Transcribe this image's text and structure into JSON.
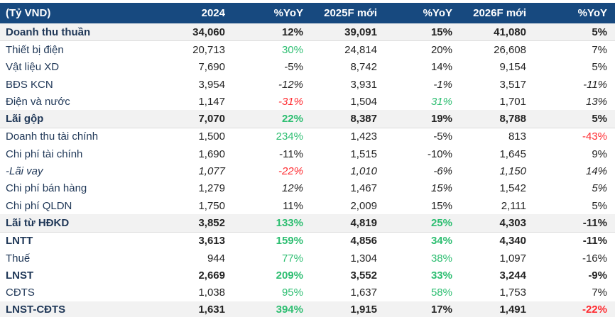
{
  "colors": {
    "header-bg": "#17497F",
    "header-text": "#FFFFFF",
    "band-bg": "#F2F2F2",
    "label-color": "#1F3757",
    "num-color": "#242424",
    "positive-green": "#2DBE71",
    "negative-red": "#FF2B30"
  },
  "chart_data": {
    "type": "table",
    "unit_label": "(Tỷ VND)",
    "columns": [
      "2024",
      "%YoY",
      "2025F mới",
      "%YoY",
      "2026F mới",
      "%YoY"
    ],
    "rows": [
      {
        "label": "Doanh thu thuần",
        "band": true,
        "bold": true,
        "cells": [
          {
            "text": "34,060"
          },
          {
            "text": "12%"
          },
          {
            "text": "39,091"
          },
          {
            "text": "15%"
          },
          {
            "text": "41,080"
          },
          {
            "text": "5%"
          }
        ]
      },
      {
        "label": "Thiết bị điện",
        "cells": [
          {
            "text": "20,713"
          },
          {
            "text": "30%",
            "color": "green"
          },
          {
            "text": "24,814"
          },
          {
            "text": "20%"
          },
          {
            "text": "26,608"
          },
          {
            "text": "7%"
          }
        ]
      },
      {
        "label": "Vật liệu XD",
        "cells": [
          {
            "text": "7,690"
          },
          {
            "text": "-5%"
          },
          {
            "text": "8,742"
          },
          {
            "text": "14%"
          },
          {
            "text": "9,154"
          },
          {
            "text": "5%"
          }
        ]
      },
      {
        "label": "BĐS KCN",
        "cells": [
          {
            "text": "3,954"
          },
          {
            "text": "-12%",
            "italic": true
          },
          {
            "text": "3,931"
          },
          {
            "text": "-1%",
            "italic": true
          },
          {
            "text": "3,517"
          },
          {
            "text": "-11%",
            "italic": true
          }
        ]
      },
      {
        "label": "Điện và nước",
        "cells": [
          {
            "text": "1,147"
          },
          {
            "text": "-31%",
            "color": "red",
            "italic": true
          },
          {
            "text": "1,504"
          },
          {
            "text": "31%",
            "color": "green",
            "italic": true
          },
          {
            "text": "1,701"
          },
          {
            "text": "13%",
            "italic": true
          }
        ]
      },
      {
        "label": "Lãi gộp",
        "band": true,
        "bold": true,
        "cells": [
          {
            "text": "7,070"
          },
          {
            "text": "22%",
            "color": "green"
          },
          {
            "text": "8,387"
          },
          {
            "text": "19%"
          },
          {
            "text": "8,788"
          },
          {
            "text": "5%"
          }
        ]
      },
      {
        "label": "Doanh thu tài chính",
        "cells": [
          {
            "text": "1,500"
          },
          {
            "text": "234%",
            "color": "green"
          },
          {
            "text": "1,423"
          },
          {
            "text": "-5%"
          },
          {
            "text": "813"
          },
          {
            "text": "-43%",
            "color": "red"
          }
        ]
      },
      {
        "label": "Chi phí tài chính",
        "cells": [
          {
            "text": "1,690"
          },
          {
            "text": "-11%"
          },
          {
            "text": "1,515"
          },
          {
            "text": "-10%"
          },
          {
            "text": "1,645"
          },
          {
            "text": "9%"
          }
        ]
      },
      {
        "label": "-Lãi vay",
        "italic": true,
        "cells": [
          {
            "text": "1,077"
          },
          {
            "text": "-22%",
            "color": "red"
          },
          {
            "text": "1,010"
          },
          {
            "text": "-6%"
          },
          {
            "text": "1,150"
          },
          {
            "text": "14%"
          }
        ]
      },
      {
        "label": "Chi phí bán hàng",
        "cells": [
          {
            "text": "1,279"
          },
          {
            "text": "12%",
            "italic": true
          },
          {
            "text": "1,467"
          },
          {
            "text": "15%",
            "italic": true
          },
          {
            "text": "1,542"
          },
          {
            "text": "5%",
            "italic": true
          }
        ]
      },
      {
        "label": "Chi phí QLDN",
        "cells": [
          {
            "text": "1,750"
          },
          {
            "text": "11%"
          },
          {
            "text": "2,009"
          },
          {
            "text": "15%"
          },
          {
            "text": "2,111"
          },
          {
            "text": "5%"
          }
        ]
      },
      {
        "label": "Lãi từ HĐKD",
        "band": true,
        "bold": true,
        "cells": [
          {
            "text": "3,852"
          },
          {
            "text": "133%",
            "color": "green"
          },
          {
            "text": "4,819"
          },
          {
            "text": "25%",
            "color": "green"
          },
          {
            "text": "4,303"
          },
          {
            "text": "-11%"
          }
        ]
      },
      {
        "label": "LNTT",
        "bold": true,
        "cells": [
          {
            "text": "3,613"
          },
          {
            "text": "159%",
            "color": "green"
          },
          {
            "text": "4,856"
          },
          {
            "text": "34%",
            "color": "green"
          },
          {
            "text": "4,340"
          },
          {
            "text": "-11%"
          }
        ]
      },
      {
        "label": "Thuế",
        "cells": [
          {
            "text": "944"
          },
          {
            "text": "77%",
            "color": "green"
          },
          {
            "text": "1,304"
          },
          {
            "text": "38%",
            "color": "green"
          },
          {
            "text": "1,097"
          },
          {
            "text": "-16%"
          }
        ]
      },
      {
        "label": "LNST",
        "bold": true,
        "cells": [
          {
            "text": "2,669"
          },
          {
            "text": "209%",
            "color": "green"
          },
          {
            "text": "3,552"
          },
          {
            "text": "33%",
            "color": "green"
          },
          {
            "text": "3,244"
          },
          {
            "text": "-9%"
          }
        ]
      },
      {
        "label": "CĐTS",
        "cells": [
          {
            "text": "1,038"
          },
          {
            "text": "95%",
            "color": "green"
          },
          {
            "text": "1,637"
          },
          {
            "text": "58%",
            "color": "green"
          },
          {
            "text": "1,753"
          },
          {
            "text": "7%"
          }
        ]
      },
      {
        "label": "LNST-CĐTS",
        "band": true,
        "bold": true,
        "cells": [
          {
            "text": "1,631"
          },
          {
            "text": "394%",
            "color": "green"
          },
          {
            "text": "1,915"
          },
          {
            "text": "17%"
          },
          {
            "text": "1,491"
          },
          {
            "text": "-22%",
            "color": "red"
          }
        ]
      }
    ]
  }
}
